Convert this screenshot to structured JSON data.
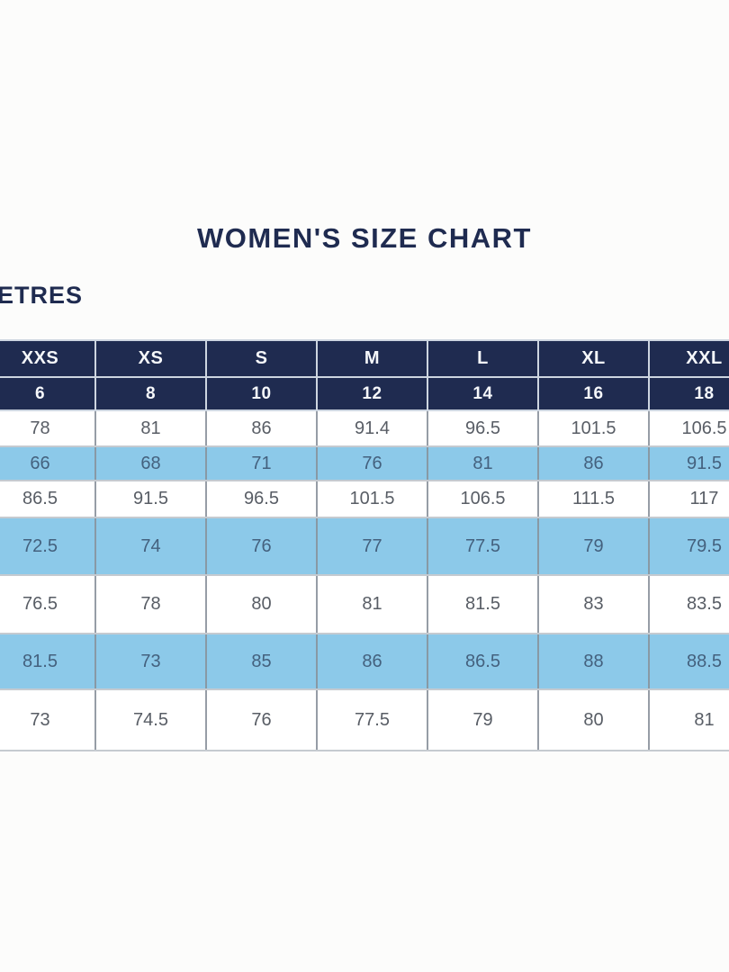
{
  "page": {
    "title": "WOMEN'S SIZE CHART",
    "units_label": "ETRES"
  },
  "colors": {
    "navy_header": "#1f2b50",
    "light_blue_row": "#8cc9e9",
    "white_row_text": "#585d65",
    "blue_row_text": "#44617e",
    "header_text": "#f6f8fb",
    "grid_vertical": "#969da6",
    "grid_horizontal": "#c5cad0",
    "background": "#fcfcfb"
  },
  "chart_data": {
    "type": "table",
    "title": "WOMEN'S SIZE CHART",
    "units_label_visible": "ETRES",
    "size_headers": [
      "XXS",
      "XS",
      "S",
      "M",
      "L",
      "XL",
      "XXL"
    ],
    "numeric_sizes": [
      "6",
      "8",
      "10",
      "12",
      "14",
      "16",
      "18"
    ],
    "rows": [
      {
        "shade": "white",
        "values": [
          "78",
          "81",
          "86",
          "91.4",
          "96.5",
          "101.5",
          "106.5"
        ]
      },
      {
        "shade": "blue",
        "values": [
          "66",
          "68",
          "71",
          "76",
          "81",
          "86",
          "91.5"
        ]
      },
      {
        "shade": "white",
        "values": [
          "86.5",
          "91.5",
          "96.5",
          "101.5",
          "106.5",
          "111.5",
          "117"
        ]
      },
      {
        "shade": "blue",
        "values": [
          "72.5",
          "74",
          "76",
          "77",
          "77.5",
          "79",
          "79.5"
        ]
      },
      {
        "shade": "white",
        "values": [
          "76.5",
          "78",
          "80",
          "81",
          "81.5",
          "83",
          "83.5"
        ]
      },
      {
        "shade": "blue",
        "values": [
          "81.5",
          "73",
          "85",
          "86",
          "86.5",
          "88",
          "88.5"
        ]
      },
      {
        "shade": "white",
        "values": [
          "73",
          "74.5",
          "76",
          "77.5",
          "79",
          "80",
          "81"
        ]
      }
    ],
    "layout_hints": {
      "left_column_cropped": true,
      "right_column_cropped": true,
      "row_shading": "alternating white / light blue",
      "header_background": "navy",
      "grid": true
    }
  }
}
